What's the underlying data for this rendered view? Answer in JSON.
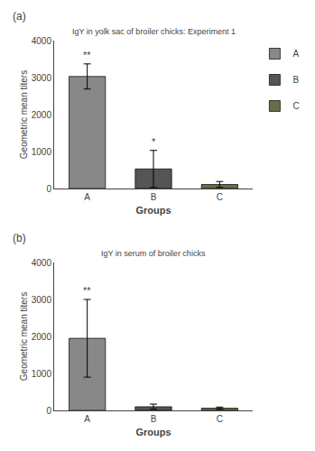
{
  "chart_data": [
    {
      "type": "bar",
      "panel_label": "(a)",
      "title": "IgY in yolk sac of broiler chicks: Experiment 1",
      "xlabel": "Groups",
      "ylabel": "Geometric mean titers",
      "categories": [
        "A",
        "B",
        "C"
      ],
      "values": [
        3030,
        530,
        110
      ],
      "errors": [
        340,
        500,
        80
      ],
      "annotations": [
        "**",
        "*",
        null
      ],
      "colors": [
        "#888888",
        "#555555",
        "#6b6b4a"
      ],
      "ylim": [
        0,
        4000
      ],
      "yticks": [
        0,
        1000,
        2000,
        3000,
        4000
      ],
      "grid": false,
      "legend": "right"
    },
    {
      "type": "bar",
      "panel_label": "(b)",
      "title": "IgY in serum of broiler chicks",
      "xlabel": "Groups",
      "ylabel": "Geometric mean titers",
      "categories": [
        "A",
        "B",
        "C"
      ],
      "values": [
        1950,
        100,
        60
      ],
      "errors": [
        1050,
        70,
        30
      ],
      "annotations": [
        "**",
        null,
        null
      ],
      "colors": [
        "#888888",
        "#555555",
        "#6b6b4a"
      ],
      "ylim": [
        0,
        4000
      ],
      "yticks": [
        0,
        1000,
        2000,
        3000,
        4000
      ],
      "grid": false
    }
  ]
}
